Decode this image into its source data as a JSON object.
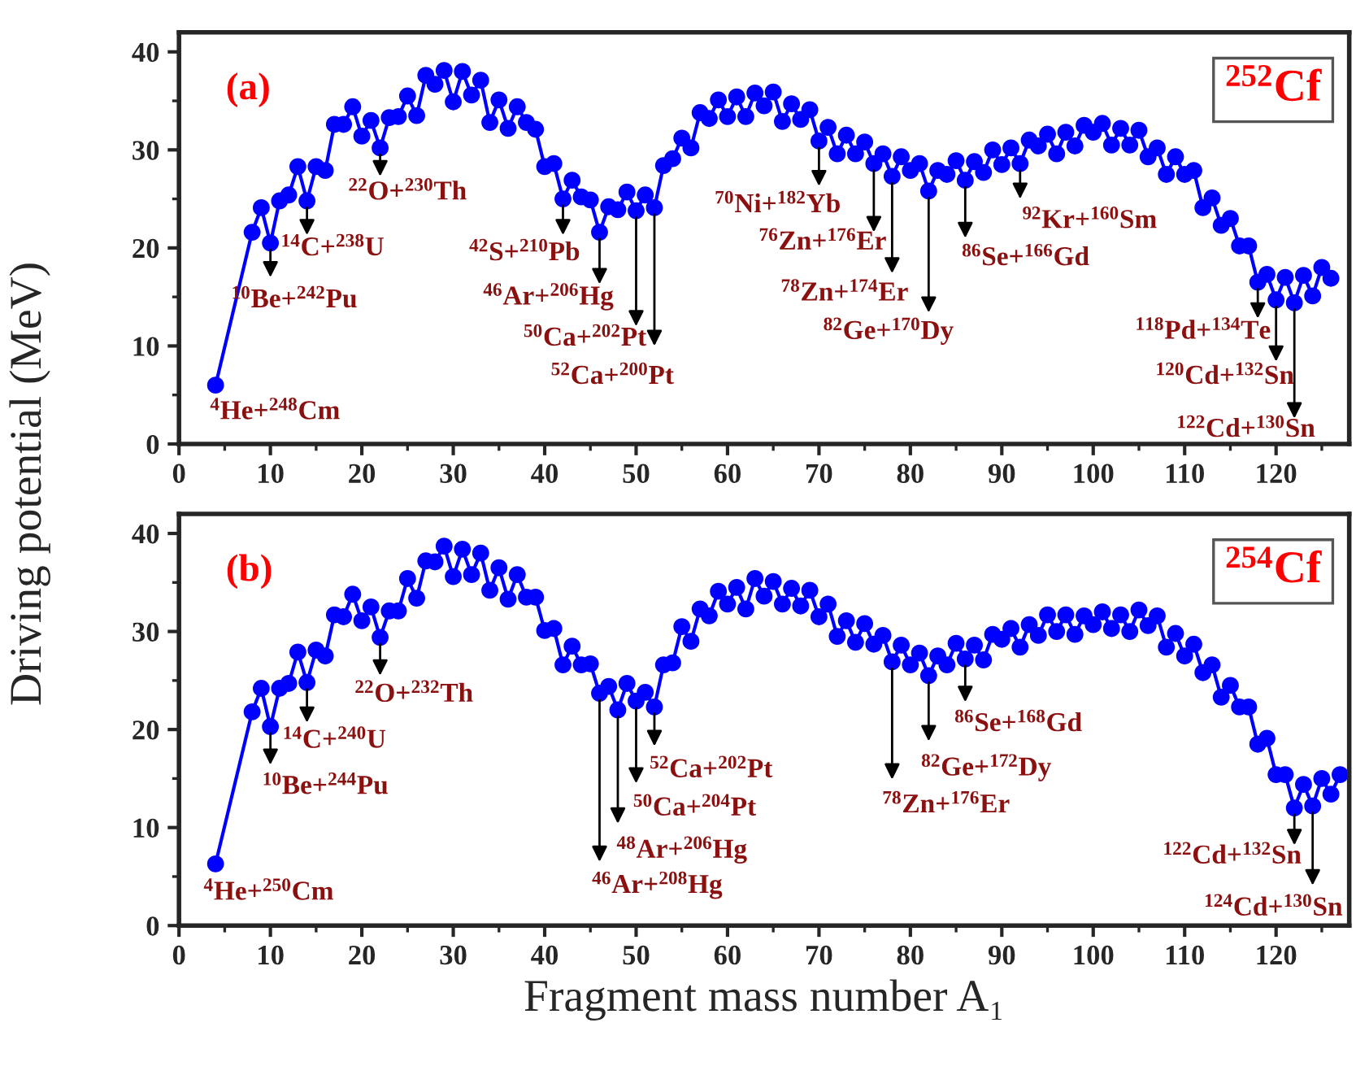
{
  "chart_data": [
    {
      "type": "line",
      "ylabel": "Driving potential (MeV)",
      "xlim": [
        0,
        128
      ],
      "ylim": [
        0,
        42
      ],
      "xticks": [
        0,
        10,
        20,
        30,
        40,
        50,
        60,
        70,
        80,
        90,
        100,
        110,
        120
      ],
      "yticks": [
        0,
        10,
        20,
        30,
        40
      ],
      "marker": "circle",
      "line_style": "solid",
      "grid": false,
      "legend": false,
      "series": [
        {
          "color": "#0000ff",
          "x": [
            4,
            8,
            9,
            10,
            11,
            12,
            13,
            14,
            15,
            16,
            17,
            18,
            19,
            20,
            21,
            22,
            23,
            24,
            25,
            26,
            27,
            28,
            29,
            30,
            31,
            32,
            33,
            34,
            35,
            36,
            37,
            38,
            39,
            40,
            41,
            42,
            43,
            44,
            45,
            46,
            47,
            48,
            49,
            50,
            51,
            52,
            53,
            54,
            55,
            56,
            57,
            58,
            59,
            60,
            61,
            62,
            63,
            64,
            65,
            66,
            67,
            68,
            69,
            70,
            71,
            72,
            73,
            74,
            75,
            76,
            77,
            78,
            79,
            80,
            81,
            82,
            83,
            84,
            85,
            86,
            87,
            88,
            89,
            90,
            91,
            92,
            93,
            94,
            95,
            96,
            97,
            98,
            99,
            100,
            101,
            102,
            103,
            104,
            105,
            106,
            107,
            108,
            109,
            110,
            111,
            112,
            113,
            114,
            115,
            116,
            117,
            118,
            119,
            120,
            121,
            122,
            123,
            124,
            125,
            126
          ],
          "values": [
            6.0,
            21.6,
            24.1,
            20.5,
            24.8,
            25.4,
            28.3,
            24.8,
            28.3,
            27.9,
            32.6,
            32.6,
            34.4,
            31.4,
            33.0,
            30.2,
            33.3,
            33.4,
            35.5,
            33.5,
            37.6,
            36.7,
            38.1,
            34.9,
            38.0,
            35.6,
            37.1,
            32.8,
            35.1,
            32.2,
            34.4,
            32.8,
            32.1,
            28.3,
            28.6,
            25.0,
            26.9,
            25.2,
            24.9,
            21.6,
            24.2,
            23.9,
            25.7,
            23.8,
            25.4,
            24.1,
            28.4,
            29.1,
            31.2,
            30.2,
            33.8,
            33.2,
            35.1,
            33.4,
            35.4,
            33.4,
            35.8,
            34.5,
            35.9,
            32.9,
            34.7,
            33.1,
            34.1,
            30.9,
            32.3,
            29.6,
            31.5,
            29.6,
            30.8,
            28.6,
            29.6,
            27.3,
            29.3,
            27.9,
            28.6,
            25.8,
            27.9,
            27.5,
            28.9,
            26.9,
            28.8,
            27.7,
            30.0,
            28.5,
            30.2,
            28.6,
            31.0,
            30.4,
            31.6,
            29.6,
            31.8,
            30.4,
            32.5,
            31.8,
            32.7,
            30.5,
            32.2,
            30.5,
            32.0,
            29.3,
            30.2,
            27.5,
            29.3,
            27.5,
            27.9,
            24.1,
            25.1,
            22.3,
            23.0,
            20.2,
            20.2,
            16.5,
            17.3,
            14.7,
            17.0,
            14.4,
            17.2,
            15.1,
            18.0,
            16.9
          ]
        }
      ],
      "annotations": [
        "(a)",
        "$^{252}$Cf",
        {
          "text": "$^{4}$He+$^{248}$Cm",
          "x": 4,
          "y": 6.0
        },
        {
          "text": "$^{10}$Be+$^{242}$Pu",
          "x": 10,
          "y": 20.5
        },
        {
          "text": "$^{14}$C+$^{238}$U",
          "x": 14,
          "y": 24.8
        },
        {
          "text": "$^{22}$O+$^{230}$Th",
          "x": 22,
          "y": 30.2
        },
        {
          "text": "$^{42}$S+$^{210}$Pb",
          "x": 42,
          "y": 25.0
        },
        {
          "text": "$^{46}$Ar+$^{206}$Hg",
          "x": 46,
          "y": 21.6
        },
        {
          "text": "$^{50}$Ca+$^{202}$Pt",
          "x": 50,
          "y": 23.8
        },
        {
          "text": "$^{52}$Ca+$^{200}$Pt",
          "x": 52,
          "y": 24.1
        },
        {
          "text": "$^{70}$Ni+$^{182}$Yb",
          "x": 70,
          "y": 30.9
        },
        {
          "text": "$^{76}$Zn+$^{176}$Er",
          "x": 76,
          "y": 28.6
        },
        {
          "text": "$^{78}$Zn+$^{174}$Er",
          "x": 78,
          "y": 27.3
        },
        {
          "text": "$^{82}$Ge+$^{170}$Dy",
          "x": 82,
          "y": 25.8
        },
        {
          "text": "$^{86}$Se+$^{166}$Gd",
          "x": 86,
          "y": 26.9
        },
        {
          "text": "$^{92}$Kr+$^{160}$Sm",
          "x": 92,
          "y": 28.6
        },
        {
          "text": "$^{118}$Pd+$^{134}$Te",
          "x": 118,
          "y": 16.5
        },
        {
          "text": "$^{120}$Cd+$^{132}$Sn",
          "x": 120,
          "y": 14.7
        },
        {
          "text": "$^{122}$Cd+$^{130}$Sn",
          "x": 122,
          "y": 14.4
        }
      ]
    },
    {
      "type": "line",
      "xlabel": "Fragment mass number A₁",
      "xlim": [
        0,
        128
      ],
      "ylim": [
        0,
        42
      ],
      "xticks": [
        0,
        10,
        20,
        30,
        40,
        50,
        60,
        70,
        80,
        90,
        100,
        110,
        120
      ],
      "yticks": [
        0,
        10,
        20,
        30,
        40
      ],
      "marker": "circle",
      "line_style": "solid",
      "grid": false,
      "legend": false,
      "series": [
        {
          "color": "#0000ff",
          "x": [
            4,
            8,
            9,
            10,
            11,
            12,
            13,
            14,
            15,
            16,
            17,
            18,
            19,
            20,
            21,
            22,
            23,
            24,
            25,
            26,
            27,
            28,
            29,
            30,
            31,
            32,
            33,
            34,
            35,
            36,
            37,
            38,
            39,
            40,
            41,
            42,
            43,
            44,
            45,
            46,
            47,
            48,
            49,
            50,
            51,
            52,
            53,
            54,
            55,
            56,
            57,
            58,
            59,
            60,
            61,
            62,
            63,
            64,
            65,
            66,
            67,
            68,
            69,
            70,
            71,
            72,
            73,
            74,
            75,
            76,
            77,
            78,
            79,
            80,
            81,
            82,
            83,
            84,
            85,
            86,
            87,
            88,
            89,
            90,
            91,
            92,
            93,
            94,
            95,
            96,
            97,
            98,
            99,
            100,
            101,
            102,
            103,
            104,
            105,
            106,
            107,
            108,
            109,
            110,
            111,
            112,
            113,
            114,
            115,
            116,
            117,
            118,
            119,
            120,
            121,
            122,
            123,
            124,
            125,
            126,
            127
          ],
          "values": [
            6.3,
            21.8,
            24.2,
            20.3,
            24.2,
            24.7,
            27.9,
            24.8,
            28.1,
            27.5,
            31.7,
            31.5,
            33.8,
            31.1,
            32.5,
            29.4,
            32.1,
            32.1,
            35.4,
            33.4,
            37.2,
            37.1,
            38.7,
            35.6,
            38.4,
            35.8,
            38.0,
            34.2,
            36.5,
            33.3,
            35.8,
            33.5,
            33.5,
            30.1,
            30.3,
            26.6,
            28.5,
            26.6,
            26.7,
            23.7,
            24.4,
            22.0,
            24.7,
            22.9,
            23.8,
            22.3,
            26.6,
            26.8,
            30.5,
            29.0,
            32.3,
            31.6,
            34.1,
            32.8,
            34.5,
            32.3,
            35.4,
            33.6,
            35.1,
            32.8,
            34.4,
            32.6,
            34.2,
            31.5,
            32.8,
            29.5,
            31.1,
            28.9,
            30.8,
            28.7,
            29.6,
            26.9,
            28.6,
            26.6,
            27.8,
            25.5,
            27.5,
            26.6,
            28.8,
            27.2,
            28.6,
            27.1,
            29.7,
            29.2,
            30.3,
            28.4,
            30.7,
            29.6,
            31.7,
            30.0,
            31.7,
            29.7,
            31.6,
            30.7,
            32.0,
            30.3,
            31.7,
            30.0,
            32.2,
            30.6,
            31.6,
            28.4,
            29.8,
            27.5,
            28.7,
            25.8,
            26.6,
            23.3,
            24.5,
            22.3,
            22.3,
            18.5,
            19.1,
            15.4,
            15.4,
            12.0,
            14.4,
            12.2,
            15.0,
            13.4,
            15.4
          ]
        }
      ],
      "annotations": [
        "(b)",
        "$^{254}$Cf",
        {
          "text": "$^{4}$He+$^{250}$Cm",
          "x": 4,
          "y": 6.3
        },
        {
          "text": "$^{10}$Be+$^{244}$Pu",
          "x": 10,
          "y": 20.3
        },
        {
          "text": "$^{14}$C+$^{240}$U",
          "x": 14,
          "y": 24.8
        },
        {
          "text": "$^{22}$O+$^{232}$Th",
          "x": 22,
          "y": 29.4
        },
        {
          "text": "$^{46}$Ar+$^{208}$Hg",
          "x": 46,
          "y": 23.7
        },
        {
          "text": "$^{48}$Ar+$^{206}$Hg",
          "x": 48,
          "y": 22.0
        },
        {
          "text": "$^{50}$Ca+$^{204}$Pt",
          "x": 50,
          "y": 22.9
        },
        {
          "text": "$^{52}$Ca+$^{202}$Pt",
          "x": 52,
          "y": 22.3
        },
        {
          "text": "$^{78}$Zn+$^{176}$Er",
          "x": 78,
          "y": 26.9
        },
        {
          "text": "$^{82}$Ge+$^{172}$Dy",
          "x": 82,
          "y": 25.5
        },
        {
          "text": "$^{86}$Se+$^{168}$Gd",
          "x": 86,
          "y": 27.2
        },
        {
          "text": "$^{122}$Cd+$^{132}$Sn",
          "x": 122,
          "y": 12.0
        },
        {
          "text": "$^{124}$Cd+$^{130}$Sn",
          "x": 124,
          "y": 12.2
        }
      ]
    }
  ]
}
